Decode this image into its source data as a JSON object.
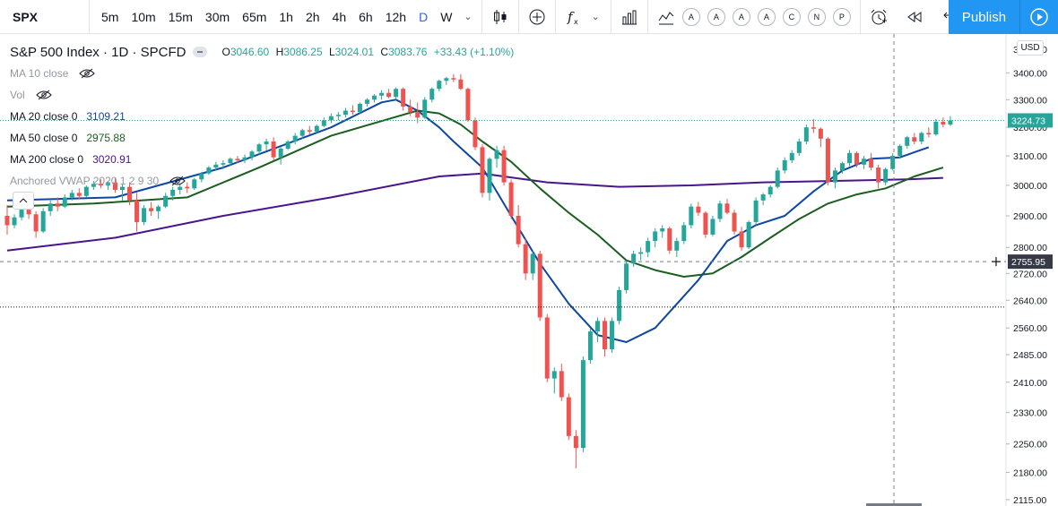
{
  "toolbar": {
    "symbol": "SPX",
    "intervals": [
      "5m",
      "10m",
      "15m",
      "30m",
      "65m",
      "1h",
      "2h",
      "4h",
      "6h",
      "12h",
      "D",
      "W"
    ],
    "active_interval": "D",
    "indicator_circles": [
      "A",
      "A",
      "A",
      "A",
      "C",
      "N",
      "P"
    ],
    "publish_label": "Publish"
  },
  "legend": {
    "title": "S&P 500 Index · 1D · SPCFD",
    "open_label": "O",
    "open": "3046.60",
    "high_label": "H",
    "high": "3086.25",
    "low_label": "L",
    "low": "3024.01",
    "close_label": "C",
    "close": "3083.76",
    "change": "+33.43 (+1.10%)",
    "indicators": [
      {
        "label": "MA 10 close",
        "value": "",
        "hidden": true,
        "color": "#9598a1"
      },
      {
        "label": "Vol",
        "value": "",
        "hidden": true,
        "color": "#9598a1"
      },
      {
        "label": "MA 20 close 0",
        "value": "3109.21",
        "hidden": false,
        "color": "#0d47a1"
      },
      {
        "label": "MA 50 close 0",
        "value": "2975.88",
        "hidden": false,
        "color": "#1b5e20"
      },
      {
        "label": "MA 200 close 0",
        "value": "3020.91",
        "hidden": false,
        "color": "#4a148c"
      },
      {
        "label": "Anchored VWAP 2020 1 2 9 30",
        "value": "",
        "hidden": true,
        "color": "#9598a1"
      }
    ]
  },
  "price_axis": {
    "currency": "USD",
    "ticks": [
      "3400.00",
      "3300.00",
      "3200.00",
      "3100.00",
      "3000.00",
      "2900.00",
      "2800.00",
      "2720.00",
      "2640.00",
      "2560.00",
      "2485.00",
      "2410.00",
      "2330.00",
      "2250.00",
      "2180.00",
      "2115.00"
    ],
    "top_partial_label": "3500.00",
    "last_price": "3224.73",
    "crosshair_price": "2755.95"
  },
  "colors": {
    "up": "#26a69a",
    "down": "#ef5350",
    "ma20": "#0d47a1",
    "ma50": "#1b5e20",
    "ma200": "#4a148c",
    "accent": "#2196f3"
  },
  "chart_data": {
    "type": "candlestick",
    "symbol": "SPX",
    "interval": "1D",
    "y_scale": "log",
    "ylim": [
      2100,
      3550
    ],
    "last_price": 3224.73,
    "crosshair_price": 2755.95,
    "dotted_level": 2620,
    "candles": [
      [
        2900,
        2935,
        2840,
        2870
      ],
      [
        2870,
        2905,
        2860,
        2895
      ],
      [
        2895,
        2930,
        2885,
        2920
      ],
      [
        2920,
        2945,
        2890,
        2905
      ],
      [
        2905,
        2915,
        2830,
        2850
      ],
      [
        2850,
        2925,
        2845,
        2915
      ],
      [
        2915,
        2950,
        2900,
        2940
      ],
      [
        2940,
        2960,
        2915,
        2930
      ],
      [
        2930,
        2970,
        2925,
        2960
      ],
      [
        2960,
        2985,
        2950,
        2975
      ],
      [
        2975,
        2990,
        2955,
        2965
      ],
      [
        2965,
        3000,
        2960,
        2995
      ],
      [
        2995,
        3015,
        2985,
        3005
      ],
      [
        3005,
        3020,
        2990,
        3000
      ],
      [
        3000,
        3015,
        2985,
        3010
      ],
      [
        3010,
        3025,
        2975,
        2985
      ],
      [
        2985,
        3005,
        2950,
        2995
      ],
      [
        2995,
        3010,
        2935,
        2950
      ],
      [
        2950,
        2975,
        2850,
        2880
      ],
      [
        2880,
        2935,
        2870,
        2925
      ],
      [
        2925,
        2945,
        2900,
        2915
      ],
      [
        2915,
        2935,
        2890,
        2930
      ],
      [
        2930,
        2975,
        2925,
        2965
      ],
      [
        2965,
        2995,
        2950,
        2985
      ],
      [
        2985,
        3005,
        2970,
        2995
      ],
      [
        2995,
        3010,
        2975,
        2990
      ],
      [
        2990,
        3025,
        2985,
        3020
      ],
      [
        3020,
        3045,
        3010,
        3040
      ],
      [
        3040,
        3065,
        3035,
        3060
      ],
      [
        3060,
        3080,
        3050,
        3070
      ],
      [
        3070,
        3085,
        3055,
        3075
      ],
      [
        3075,
        3095,
        3065,
        3090
      ],
      [
        3090,
        3100,
        3075,
        3085
      ],
      [
        3085,
        3105,
        3075,
        3095
      ],
      [
        3095,
        3120,
        3085,
        3115
      ],
      [
        3115,
        3145,
        3105,
        3140
      ],
      [
        3140,
        3160,
        3120,
        3150
      ],
      [
        3150,
        3165,
        3085,
        3095
      ],
      [
        3095,
        3130,
        3070,
        3125
      ],
      [
        3125,
        3155,
        3120,
        3150
      ],
      [
        3150,
        3180,
        3140,
        3170
      ],
      [
        3170,
        3195,
        3160,
        3190
      ],
      [
        3190,
        3205,
        3175,
        3185
      ],
      [
        3185,
        3210,
        3180,
        3205
      ],
      [
        3205,
        3235,
        3200,
        3225
      ],
      [
        3225,
        3250,
        3215,
        3240
      ],
      [
        3240,
        3255,
        3225,
        3245
      ],
      [
        3245,
        3270,
        3235,
        3260
      ],
      [
        3260,
        3280,
        3245,
        3255
      ],
      [
        3255,
        3290,
        3250,
        3285
      ],
      [
        3285,
        3305,
        3275,
        3300
      ],
      [
        3300,
        3320,
        3290,
        3315
      ],
      [
        3315,
        3335,
        3300,
        3325
      ],
      [
        3325,
        3340,
        3305,
        3310
      ],
      [
        3310,
        3345,
        3300,
        3340
      ],
      [
        3340,
        3345,
        3260,
        3275
      ],
      [
        3275,
        3300,
        3240,
        3255
      ],
      [
        3255,
        3290,
        3215,
        3235
      ],
      [
        3235,
        3310,
        3230,
        3300
      ],
      [
        3300,
        3345,
        3290,
        3340
      ],
      [
        3340,
        3375,
        3330,
        3370
      ],
      [
        3370,
        3385,
        3355,
        3380
      ],
      [
        3380,
        3395,
        3365,
        3375
      ],
      [
        3375,
        3395,
        3335,
        3340
      ],
      [
        3340,
        3345,
        3220,
        3225
      ],
      [
        3225,
        3235,
        3120,
        3130
      ],
      [
        3130,
        3140,
        2960,
        2975
      ],
      [
        2975,
        3095,
        2950,
        3090
      ],
      [
        3090,
        3135,
        3060,
        3120
      ],
      [
        3120,
        3135,
        3000,
        3010
      ],
      [
        3010,
        3020,
        2890,
        2900
      ],
      [
        2900,
        2935,
        2800,
        2810
      ],
      [
        2810,
        2830,
        2700,
        2720
      ],
      [
        2720,
        2790,
        2700,
        2780
      ],
      [
        2780,
        2790,
        2580,
        2590
      ],
      [
        2590,
        2600,
        2410,
        2420
      ],
      [
        2420,
        2450,
        2380,
        2440
      ],
      [
        2440,
        2460,
        2360,
        2370
      ],
      [
        2370,
        2380,
        2260,
        2270
      ],
      [
        2270,
        2285,
        2190,
        2240
      ],
      [
        2240,
        2480,
        2230,
        2470
      ],
      [
        2470,
        2560,
        2460,
        2550
      ],
      [
        2550,
        2590,
        2520,
        2580
      ],
      [
        2580,
        2590,
        2480,
        2500
      ],
      [
        2500,
        2590,
        2490,
        2580
      ],
      [
        2580,
        2680,
        2570,
        2670
      ],
      [
        2670,
        2760,
        2660,
        2750
      ],
      [
        2750,
        2790,
        2740,
        2780
      ],
      [
        2780,
        2800,
        2760,
        2785
      ],
      [
        2785,
        2830,
        2770,
        2820
      ],
      [
        2820,
        2860,
        2800,
        2850
      ],
      [
        2850,
        2870,
        2830,
        2860
      ],
      [
        2860,
        2865,
        2780,
        2790
      ],
      [
        2790,
        2830,
        2770,
        2820
      ],
      [
        2820,
        2880,
        2810,
        2870
      ],
      [
        2870,
        2940,
        2860,
        2930
      ],
      [
        2930,
        2945,
        2900,
        2910
      ],
      [
        2910,
        2915,
        2830,
        2840
      ],
      [
        2840,
        2900,
        2835,
        2890
      ],
      [
        2890,
        2950,
        2880,
        2940
      ],
      [
        2940,
        2955,
        2905,
        2910
      ],
      [
        2910,
        2920,
        2840,
        2850
      ],
      [
        2850,
        2865,
        2790,
        2800
      ],
      [
        2800,
        2885,
        2795,
        2880
      ],
      [
        2880,
        2960,
        2870,
        2950
      ],
      [
        2950,
        2975,
        2935,
        2970
      ],
      [
        2970,
        3000,
        2960,
        2995
      ],
      [
        2995,
        3060,
        2990,
        3050
      ],
      [
        3050,
        3095,
        3040,
        3085
      ],
      [
        3085,
        3120,
        3075,
        3110
      ],
      [
        3110,
        3160,
        3100,
        3150
      ],
      [
        3150,
        3210,
        3140,
        3200
      ],
      [
        3200,
        3230,
        3180,
        3195
      ],
      [
        3195,
        3200,
        3130,
        3160
      ],
      [
        3160,
        3165,
        3000,
        3010
      ],
      [
        3010,
        3060,
        2990,
        3050
      ],
      [
        3050,
        3080,
        3040,
        3075
      ],
      [
        3075,
        3120,
        3065,
        3110
      ],
      [
        3110,
        3115,
        3060,
        3070
      ],
      [
        3070,
        3100,
        3055,
        3090
      ],
      [
        3090,
        3110,
        3050,
        3060
      ],
      [
        3060,
        3070,
        2990,
        3010
      ],
      [
        3010,
        3060,
        3000,
        3055
      ],
      [
        3055,
        3110,
        3050,
        3100
      ],
      [
        3100,
        3140,
        3090,
        3135
      ],
      [
        3135,
        3170,
        3125,
        3165
      ],
      [
        3165,
        3180,
        3140,
        3150
      ],
      [
        3150,
        3185,
        3140,
        3180
      ],
      [
        3180,
        3200,
        3165,
        3175
      ],
      [
        3175,
        3230,
        3170,
        3220
      ],
      [
        3220,
        3235,
        3200,
        3210
      ],
      [
        3210,
        3240,
        3205,
        3224.73
      ]
    ],
    "ma20": [
      [
        0,
        2950
      ],
      [
        15,
        2960
      ],
      [
        30,
        3060
      ],
      [
        45,
        3200
      ],
      [
        52,
        3290
      ],
      [
        54,
        3300
      ],
      [
        57,
        3260
      ],
      [
        60,
        3200
      ],
      [
        62,
        3150
      ],
      [
        66,
        3060
      ],
      [
        70,
        2900
      ],
      [
        74,
        2750
      ],
      [
        78,
        2630
      ],
      [
        82,
        2540
      ],
      [
        86,
        2520
      ],
      [
        90,
        2560
      ],
      [
        96,
        2700
      ],
      [
        100,
        2820
      ],
      [
        104,
        2870
      ],
      [
        108,
        2900
      ],
      [
        112,
        2980
      ],
      [
        116,
        3050
      ],
      [
        120,
        3090
      ],
      [
        124,
        3095
      ],
      [
        128,
        3130
      ]
    ],
    "ma50": [
      [
        0,
        2930
      ],
      [
        12,
        2940
      ],
      [
        25,
        2960
      ],
      [
        35,
        3060
      ],
      [
        45,
        3170
      ],
      [
        53,
        3230
      ],
      [
        57,
        3260
      ],
      [
        60,
        3250
      ],
      [
        63,
        3210
      ],
      [
        66,
        3150
      ],
      [
        70,
        3080
      ],
      [
        74,
        2990
      ],
      [
        78,
        2910
      ],
      [
        82,
        2840
      ],
      [
        86,
        2760
      ],
      [
        90,
        2730
      ],
      [
        94,
        2710
      ],
      [
        98,
        2720
      ],
      [
        102,
        2770
      ],
      [
        106,
        2830
      ],
      [
        110,
        2890
      ],
      [
        114,
        2940
      ],
      [
        118,
        2970
      ],
      [
        122,
        2990
      ],
      [
        126,
        3030
      ],
      [
        130,
        3060
      ]
    ],
    "ma200": [
      [
        0,
        2790
      ],
      [
        15,
        2830
      ],
      [
        30,
        2900
      ],
      [
        45,
        2960
      ],
      [
        60,
        3030
      ],
      [
        66,
        3040
      ],
      [
        75,
        3010
      ],
      [
        85,
        2995
      ],
      [
        95,
        3000
      ],
      [
        105,
        3010
      ],
      [
        115,
        3015
      ],
      [
        125,
        3020
      ],
      [
        130,
        3025
      ]
    ]
  }
}
